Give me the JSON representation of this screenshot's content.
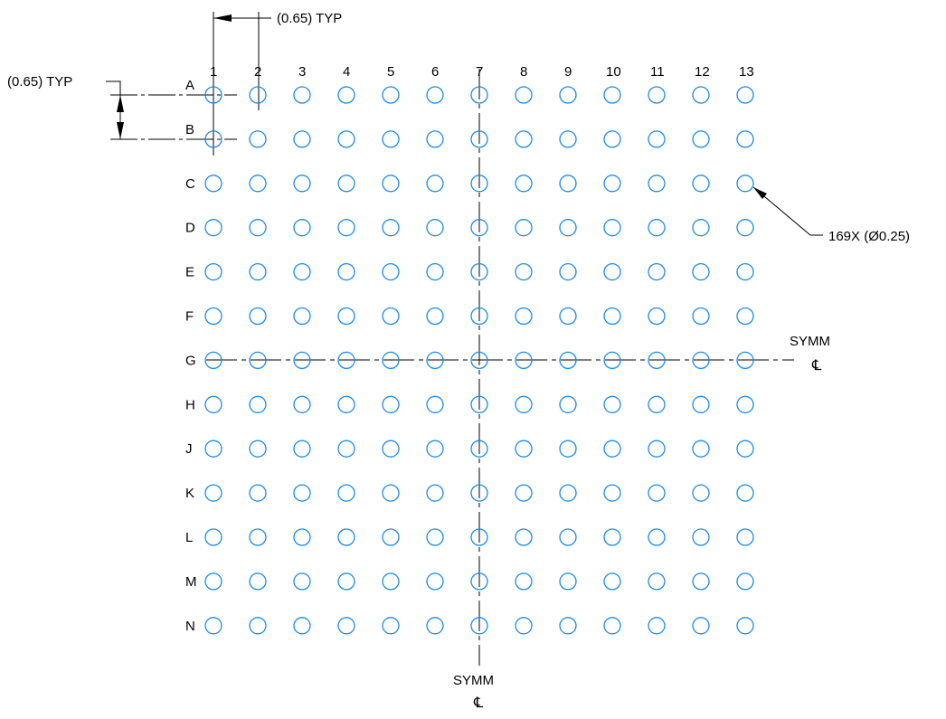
{
  "drawing": {
    "pad_color": "#1c8be8",
    "line_color": "#000000",
    "rows": [
      "A",
      "B",
      "C",
      "D",
      "E",
      "F",
      "G",
      "H",
      "J",
      "K",
      "L",
      "M",
      "N"
    ],
    "columns": [
      "1",
      "2",
      "3",
      "4",
      "5",
      "6",
      "7",
      "8",
      "9",
      "10",
      "11",
      "12",
      "13"
    ],
    "pitch_x_label": "(0.65) TYP",
    "pitch_y_label": "(0.65) TYP",
    "pad_callout": "169X (Ø0.25)",
    "symm_horizontal": {
      "label": "SYMM",
      "symbol": "℄"
    },
    "symm_vertical": {
      "label": "SYMM",
      "symbol": "℄"
    }
  }
}
